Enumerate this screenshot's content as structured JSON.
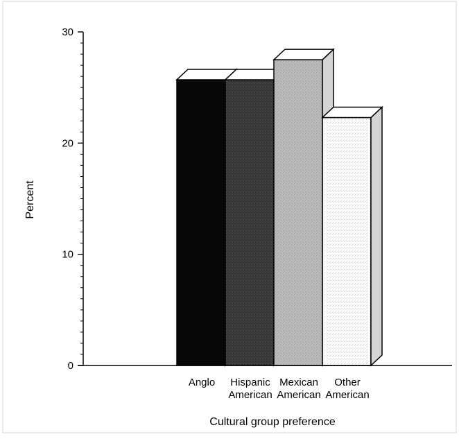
{
  "chart_data": {
    "type": "bar",
    "style": "3d",
    "categories": [
      [
        "Anglo"
      ],
      [
        "Hispanic",
        "American"
      ],
      [
        "Mexican",
        "American"
      ],
      [
        "Other",
        "American"
      ]
    ],
    "values": [
      25.7,
      25.7,
      27.5,
      22.3
    ],
    "fills": [
      "#080808",
      "#3a3a3a",
      "#b9b9b9",
      "#fbfbfb"
    ],
    "ylabel": "Percent",
    "xlabel": "Cultural group preference",
    "ylim": [
      0,
      30
    ],
    "yticks": [
      "0",
      "10",
      "20",
      "30"
    ],
    "legend": "none",
    "grid": false
  }
}
